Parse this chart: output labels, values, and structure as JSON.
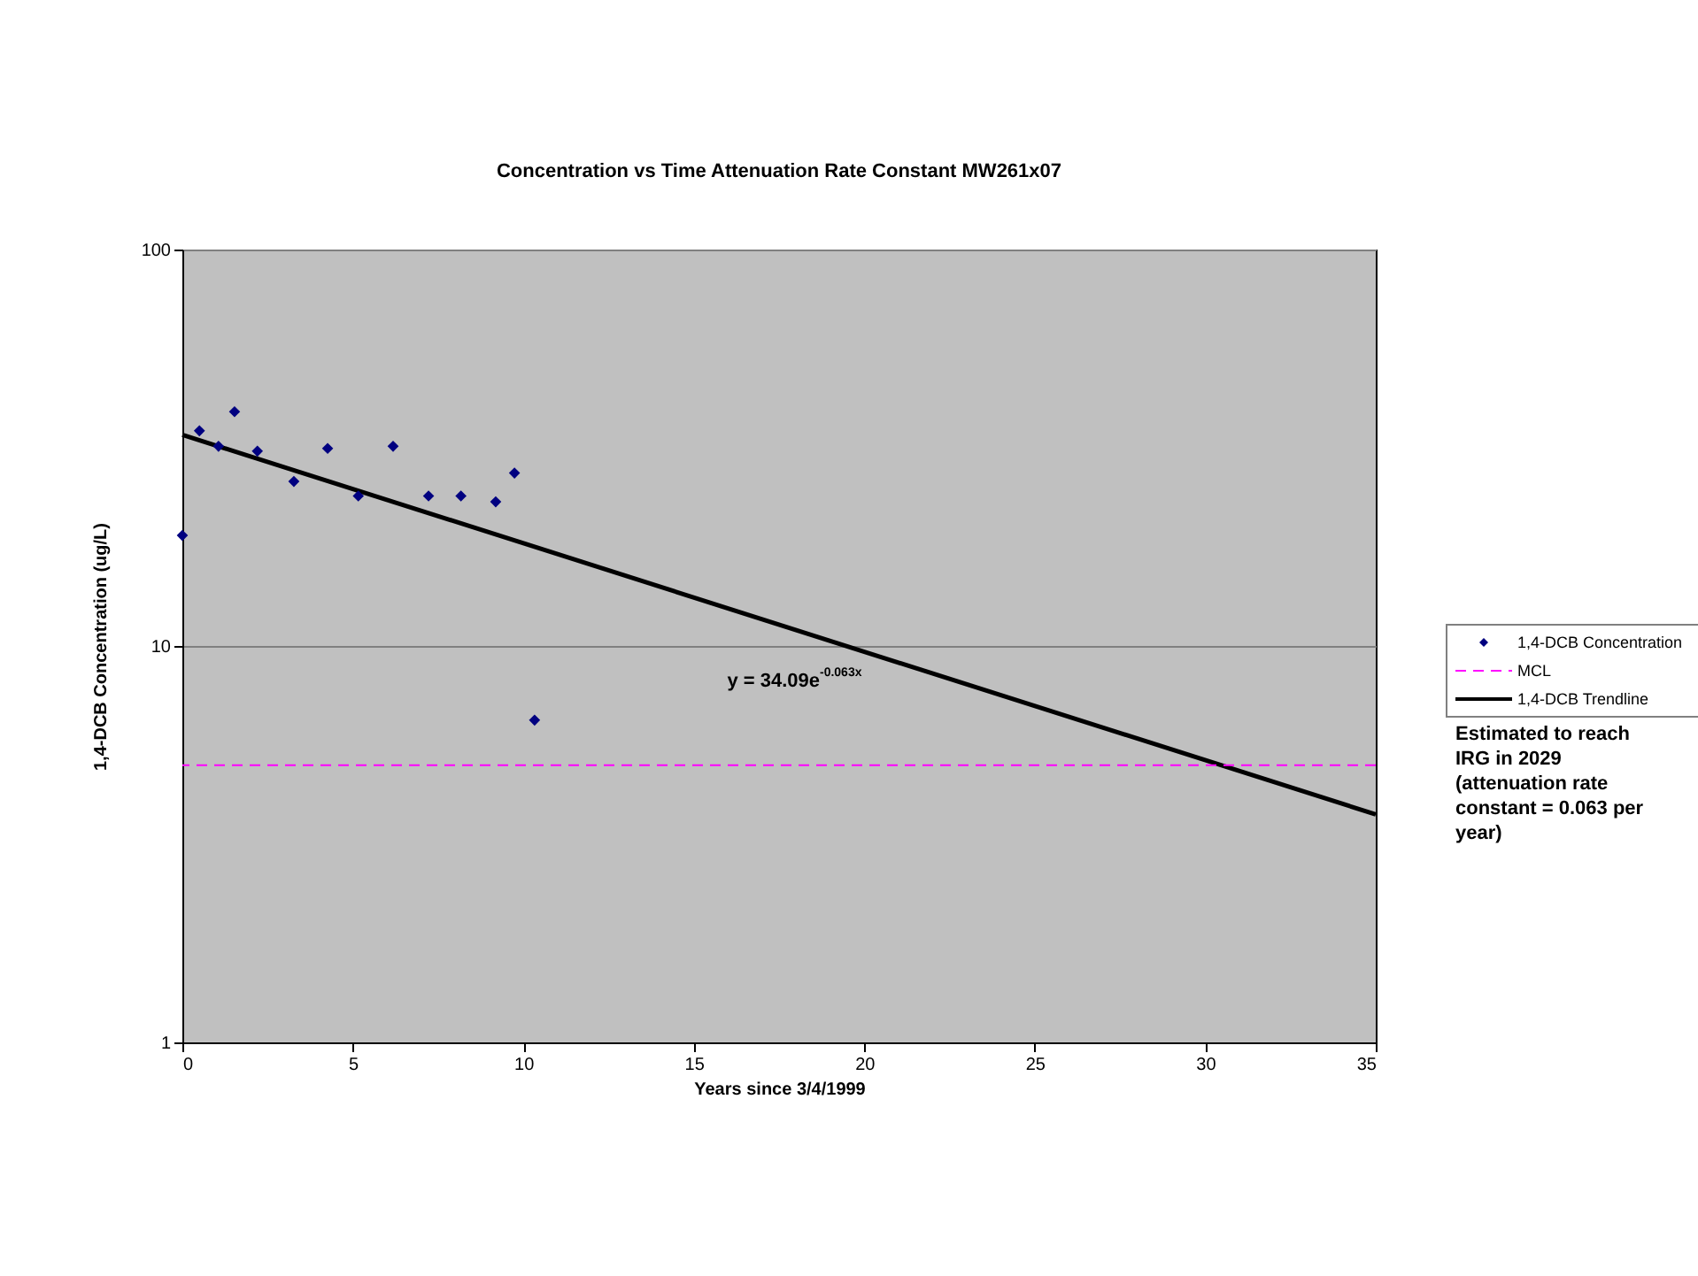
{
  "chart_data": {
    "type": "scatter",
    "title": "Concentration vs Time Attenuation Rate Constant MW261x07",
    "xlabel": "Years since 3/4/1999",
    "ylabel": "1,4-DCB Concentration (ug/L)",
    "x": [
      0,
      0.5,
      1.06,
      1.53,
      2.2,
      3.27,
      4.26,
      5.16,
      6.18,
      7.22,
      8.17,
      9.19,
      9.74,
      10.33
    ],
    "series": [
      {
        "name": "1,4-DCB Concentration",
        "color": "#000080",
        "marker": "diamond",
        "values": [
          19.0,
          34.9,
          31.9,
          39.0,
          31.0,
          26.0,
          31.5,
          23.9,
          31.9,
          23.9,
          23.9,
          23.1,
          27.3,
          6.5
        ]
      },
      {
        "name": "1,4-DCB Trendline",
        "type": "line",
        "color": "#000000",
        "x": [
          0,
          35
        ],
        "values": [
          34.09,
          3.76
        ]
      }
    ],
    "ref_lines": [
      {
        "axis": "y",
        "value": 5,
        "label": "MCL",
        "color": "#ff00ff",
        "line_style": "dashed"
      }
    ],
    "annotations": [
      "y = 34.09e$^{-0.063x}$",
      "Estimated to reach IRG in 2029 (attenuation rate constant = 0.063 per year)"
    ],
    "xlim": [
      0,
      35
    ],
    "xticks": [
      0,
      5,
      10,
      15,
      20,
      25,
      30,
      35
    ],
    "ylim": [
      1,
      100
    ],
    "yticks": [
      1,
      10,
      100
    ],
    "log": "y",
    "grid": "y",
    "legend": "right"
  }
}
